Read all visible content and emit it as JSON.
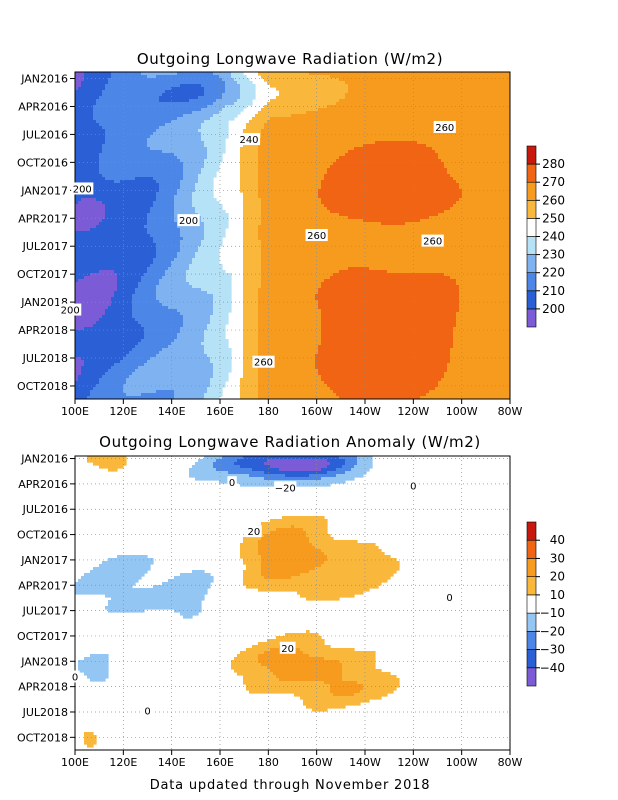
{
  "chart_data": [
    {
      "type": "heatmap",
      "title": "Outgoing Longwave Radiation (W/m2)",
      "x_ticks": [
        "100E",
        "120E",
        "140E",
        "160E",
        "180",
        "160W",
        "140W",
        "120W",
        "100W",
        "80W"
      ],
      "y_ticks": [
        "JAN2016",
        "APR2016",
        "JUL2016",
        "OCT2016",
        "JAN2017",
        "APR2017",
        "JUL2017",
        "OCT2017",
        "JAN2018",
        "APR2018",
        "JUL2018",
        "OCT2018"
      ],
      "colorbar": {
        "levels": [
          200,
          210,
          220,
          230,
          240,
          250,
          260,
          270,
          280
        ],
        "labels": [
          "200",
          "210",
          "220",
          "230",
          "240",
          "250",
          "260",
          "270",
          "280"
        ],
        "colors": [
          "#7b5cd6",
          "#2a5fd6",
          "#4c86e6",
          "#7fb2f0",
          "#b6e2f7",
          "#ffffff",
          "#f9b73b",
          "#f79b1f",
          "#f06414",
          "#c8190f"
        ]
      },
      "contour_labels": [
        {
          "text": "200",
          "x_deg": 103,
          "month": 11.8
        },
        {
          "text": "200",
          "x_deg": 147,
          "month": 15.2
        },
        {
          "text": "200",
          "x_deg": 98,
          "month": 24.8
        },
        {
          "text": "240",
          "x_deg": 172,
          "month": 6.5
        },
        {
          "text": "260",
          "x_deg": 253,
          "month": 5.2
        },
        {
          "text": "260",
          "x_deg": 200,
          "month": 16.8
        },
        {
          "text": "260",
          "x_deg": 248,
          "month": 17.4
        },
        {
          "text": "260",
          "x_deg": 178,
          "month": 30.4
        }
      ]
    },
    {
      "type": "heatmap",
      "title": "Outgoing Longwave Radiation Anomaly (W/m2)",
      "x_ticks": [
        "100E",
        "120E",
        "140E",
        "160E",
        "180",
        "160W",
        "140W",
        "120W",
        "100W",
        "80W"
      ],
      "y_ticks": [
        "JAN2016",
        "APR2016",
        "JUL2016",
        "OCT2016",
        "JAN2017",
        "APR2017",
        "JUL2017",
        "OCT2017",
        "JAN2018",
        "APR2018",
        "JUL2018",
        "OCT2018"
      ],
      "colorbar": {
        "levels": [
          -40,
          -30,
          -20,
          -10,
          10,
          20,
          30,
          40
        ],
        "labels": [
          "−40",
          "−30",
          "−20",
          "−10",
          "10",
          "20",
          "30",
          "40"
        ],
        "colors": [
          "#7b5cd6",
          "#2a5fd6",
          "#4c86e6",
          "#93c6f2",
          "#ffffff",
          "#f9b73b",
          "#f79b1f",
          "#f06414",
          "#c8190f"
        ]
      },
      "contour_labels": [
        {
          "text": "0",
          "x_deg": 165,
          "month": 2.8
        },
        {
          "text": "−20",
          "x_deg": 187,
          "month": 3.4
        },
        {
          "text": "0",
          "x_deg": 240,
          "month": 3.2
        },
        {
          "text": "20",
          "x_deg": 174,
          "month": 8.6
        },
        {
          "text": "0",
          "x_deg": 255,
          "month": 16.4
        },
        {
          "text": "20",
          "x_deg": 188,
          "month": 22.4
        },
        {
          "text": "0",
          "x_deg": 100,
          "month": 25.8
        },
        {
          "text": "0",
          "x_deg": 130,
          "month": 29.8
        }
      ]
    }
  ],
  "footer": "Data updated through November 2018"
}
